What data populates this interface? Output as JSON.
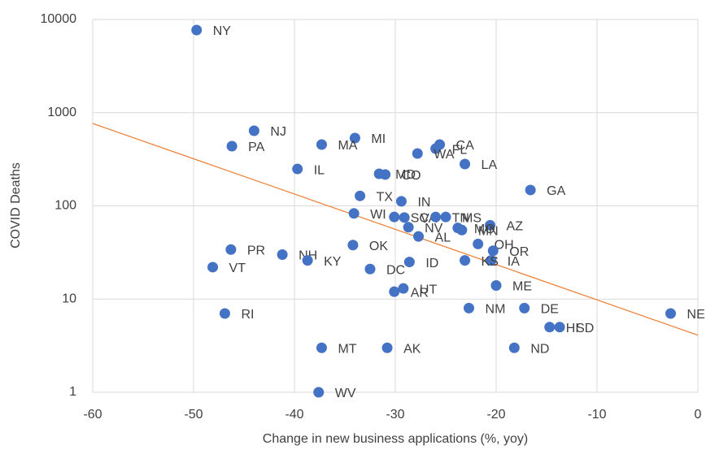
{
  "chart_data": {
    "type": "scatter",
    "x_label": "Change in new business applications (%, yoy)",
    "y_label": "COVID Deaths",
    "xlim": [
      -60,
      0
    ],
    "xticks": [
      -60,
      -50,
      -40,
      -30,
      -20,
      -10,
      0
    ],
    "ylim": [
      1,
      10000
    ],
    "yticks": [
      1,
      10,
      100,
      1000,
      10000
    ],
    "y_scale": "log",
    "grid": true,
    "color": "#4472c4",
    "labels": [
      "NY",
      "NJ",
      "PA",
      "MI",
      "MA",
      "CA",
      "FL",
      "WA",
      "LA",
      "IL",
      "MD",
      "CO",
      "GA",
      "TX",
      "IN",
      "WI",
      "SC",
      "VA",
      "TN",
      "MS",
      "AZ",
      "MO",
      "MN",
      "NV",
      "AL",
      "OH",
      "OR",
      "IA",
      "KS",
      "OK",
      "PR",
      "NH",
      "KY",
      "VT",
      "DC",
      "ID",
      "ME",
      "UT",
      "AR",
      "NM",
      "DE",
      "NE",
      "RI",
      "HI",
      "SD",
      "MT",
      "AK",
      "ND",
      "WV"
    ],
    "x": [
      -49.7,
      -44.0,
      -46.2,
      -34.0,
      -37.3,
      -25.6,
      -26.0,
      -27.8,
      -23.1,
      -39.7,
      -31.6,
      -31.0,
      -16.6,
      -33.5,
      -29.4,
      -34.1,
      -30.1,
      -29.1,
      -26.0,
      -25.0,
      -20.6,
      -23.8,
      -23.4,
      -28.7,
      -27.7,
      -21.8,
      -20.3,
      -20.5,
      -23.1,
      -34.2,
      -46.3,
      -41.2,
      -38.7,
      -48.1,
      -32.5,
      -28.6,
      -20.0,
      -29.2,
      -30.1,
      -22.7,
      -17.2,
      -2.7,
      -46.9,
      -14.7,
      -13.7,
      -37.3,
      -30.8,
      -18.2,
      -37.6
    ],
    "values": [
      7700,
      640,
      437,
      534,
      455,
      455,
      411,
      365,
      281,
      249,
      221,
      217,
      148,
      128,
      112,
      83,
      76,
      75,
      76,
      76,
      62,
      58,
      55,
      59,
      47,
      39,
      33,
      26,
      26,
      38,
      34,
      30,
      26,
      22,
      21,
      25,
      14,
      13,
      12,
      8,
      8,
      7,
      7,
      5,
      5,
      3,
      3,
      3,
      1
    ],
    "trendline": {
      "color": "#ed7d31",
      "x": [
        -60,
        0
      ],
      "values": [
        766,
        4.1
      ]
    }
  }
}
